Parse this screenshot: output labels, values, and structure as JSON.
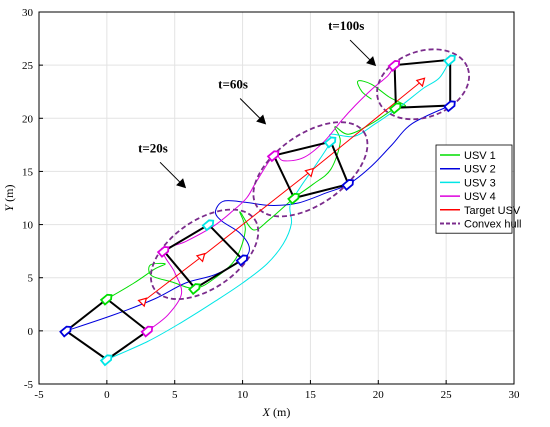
{
  "chart_data": {
    "type": "line",
    "xlabel_var": "X",
    "xlabel_unit": " (m)",
    "ylabel_var": "Y",
    "ylabel_unit": " (m)",
    "xlim": [
      -5,
      30
    ],
    "ylim": [
      -5,
      30
    ],
    "xticks": [
      -5,
      0,
      5,
      10,
      15,
      20,
      25,
      30
    ],
    "yticks": [
      -5,
      0,
      5,
      10,
      15,
      20,
      25,
      30
    ],
    "grid": true,
    "legend_position": "right",
    "legend": [
      {
        "name": "USV 1",
        "color": "#00dd00",
        "style": "solid"
      },
      {
        "name": "USV 2",
        "color": "#0000dd",
        "style": "solid"
      },
      {
        "name": "USV 3",
        "color": "#00e6e6",
        "style": "solid"
      },
      {
        "name": "USV 4",
        "color": "#dd00dd",
        "style": "solid"
      },
      {
        "name": "Target USV",
        "color": "#ff0000",
        "style": "solid"
      },
      {
        "name": "Convex hull",
        "color": "#7b2c8c",
        "style": "dashed"
      }
    ],
    "annotations": [
      {
        "text": "t=20s",
        "x": 2.3,
        "y": 16.8
      },
      {
        "text": "t=60s",
        "x": 8.2,
        "y": 22.8
      },
      {
        "text": "t=100s",
        "x": 16.3,
        "y": 28.3
      }
    ],
    "target_path": [
      [
        2.7,
        2.8
      ],
      [
        7,
        7
      ],
      [
        15,
        15
      ],
      [
        23.2,
        23.5
      ]
    ],
    "formations": [
      {
        "t": "0s",
        "usv1": [
          0,
          3
        ],
        "usv2": [
          -3,
          0
        ],
        "usv3": [
          0,
          -2.7
        ],
        "usv4": [
          3,
          0
        ]
      },
      {
        "t": "20s",
        "usv1": [
          6.5,
          4
        ],
        "usv2": [
          10,
          6.7
        ],
        "usv3": [
          7.5,
          10
        ],
        "usv4": [
          4.2,
          7.5
        ]
      },
      {
        "t": "60s",
        "usv1": [
          13.8,
          12.5
        ],
        "usv2": [
          17.8,
          13.8
        ],
        "usv3": [
          16.5,
          17.8
        ],
        "usv4": [
          12.3,
          16.5
        ]
      },
      {
        "t": "100s",
        "usv1": [
          21.3,
          21
        ],
        "usv2": [
          25.3,
          21.2
        ],
        "usv3": [
          25.3,
          25.5
        ],
        "usv4": [
          21.2,
          25
        ]
      }
    ],
    "hulls": [
      {
        "t": "20s",
        "cx": 7.2,
        "cy": 7.2,
        "rx": 4.5,
        "ry": 3.2,
        "angle": 35
      },
      {
        "t": "60s",
        "cx": 15.0,
        "cy": 15.2,
        "rx": 4.8,
        "ry": 3.3,
        "angle": 35
      },
      {
        "t": "100s",
        "cx": 23.3,
        "cy": 23.2,
        "rx": 3.5,
        "ry": 3.1,
        "angle": 20
      }
    ],
    "series": [
      {
        "name": "USV 1",
        "points": [
          [
            0,
            3
          ],
          [
            2,
            4.5
          ],
          [
            3.5,
            5.8
          ],
          [
            4.3,
            6.3
          ],
          [
            3.2,
            6.2
          ],
          [
            3.3,
            5.2
          ],
          [
            4.8,
            4.6
          ],
          [
            6.5,
            4
          ],
          [
            8,
            5
          ],
          [
            9.5,
            6.8
          ],
          [
            10.2,
            9.5
          ],
          [
            9.8,
            11.2
          ],
          [
            10.8,
            9.5
          ],
          [
            12,
            10.5
          ],
          [
            13.8,
            12.5
          ],
          [
            15.2,
            13.8
          ],
          [
            16.5,
            15.2
          ],
          [
            17.2,
            17.8
          ],
          [
            16.8,
            19.2
          ],
          [
            17.8,
            18.5
          ],
          [
            19.5,
            19.5
          ],
          [
            21.3,
            21
          ],
          [
            22,
            21.2
          ],
          [
            20.8,
            22
          ],
          [
            19.5,
            23.2
          ],
          [
            18.5,
            23.5
          ],
          [
            18.8,
            22.5
          ],
          [
            19.5,
            21.8
          ]
        ]
      },
      {
        "name": "USV 2",
        "points": [
          [
            -3,
            0
          ],
          [
            0.5,
            1.5
          ],
          [
            3.5,
            3
          ],
          [
            5.8,
            4.5
          ],
          [
            8,
            5.3
          ],
          [
            10,
            6.7
          ],
          [
            10.5,
            7.8
          ],
          [
            9.8,
            9.2
          ],
          [
            8.5,
            10.3
          ],
          [
            8,
            11.2
          ],
          [
            8.6,
            12.2
          ],
          [
            10.2,
            12.1
          ],
          [
            12,
            11.8
          ],
          [
            14,
            12
          ],
          [
            16.2,
            13
          ],
          [
            17.8,
            13.8
          ],
          [
            19.5,
            15.5
          ],
          [
            21,
            17.5
          ],
          [
            22.5,
            19.5
          ],
          [
            25.3,
            21.2
          ]
        ]
      },
      {
        "name": "USV 3",
        "points": [
          [
            0,
            -2.7
          ],
          [
            3,
            -1
          ],
          [
            5.5,
            0.8
          ],
          [
            8,
            2.8
          ],
          [
            10,
            4.5
          ],
          [
            11.8,
            6.3
          ],
          [
            13,
            8.2
          ],
          [
            13.6,
            10.1
          ],
          [
            13.5,
            11.8
          ],
          [
            14.3,
            13.6
          ],
          [
            15.5,
            15.8
          ],
          [
            16.5,
            17.8
          ],
          [
            16.5,
            18.5
          ],
          [
            18.2,
            18.3
          ],
          [
            19.8,
            19.5
          ],
          [
            21.5,
            21
          ],
          [
            23.3,
            22.8
          ],
          [
            24.5,
            23.8
          ],
          [
            25.3,
            25.5
          ]
        ]
      },
      {
        "name": "USV 4",
        "points": [
          [
            3,
            0
          ],
          [
            4.5,
            1.5
          ],
          [
            5.5,
            3.5
          ],
          [
            5,
            5.5
          ],
          [
            4.2,
            7.5
          ],
          [
            5.8,
            8.4
          ],
          [
            7.8,
            9.8
          ],
          [
            9.2,
            11.2
          ],
          [
            10.3,
            12.5
          ],
          [
            11,
            14
          ],
          [
            12.3,
            16.5
          ],
          [
            13,
            16
          ],
          [
            14.5,
            16.3
          ],
          [
            16,
            17.8
          ],
          [
            17.3,
            19.8
          ],
          [
            18.3,
            21.2
          ],
          [
            19.5,
            22.7
          ],
          [
            20.7,
            24
          ],
          [
            21.2,
            25
          ]
        ]
      }
    ]
  }
}
